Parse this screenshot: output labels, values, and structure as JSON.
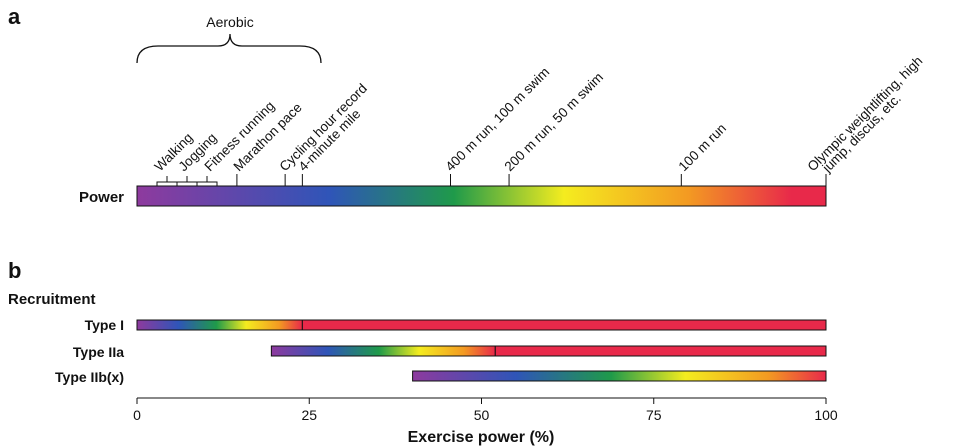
{
  "panel_a_label": "a",
  "panel_b_label": "b",
  "aerobic_label": "Aerobic",
  "power_label": "Power",
  "recruitment_label": "Recruitment",
  "activities": [
    {
      "name": "Walking",
      "power": 4
    },
    {
      "name": "Jogging",
      "power": 7
    },
    {
      "name": "Fitness running",
      "power": 10
    },
    {
      "name": "Marathon pace",
      "power": 14.5
    },
    {
      "name": "Cycling hour record",
      "power": 21.5
    },
    {
      "name": "4-minute mile",
      "power": 24
    },
    {
      "name": "400 m run, 100 m swim",
      "power": 45.5
    },
    {
      "name": "200 m run, 50 m swim",
      "power": 54
    },
    {
      "name": "100 m run",
      "power": 79
    },
    {
      "name": "Olympic weightlifting, high jump, discus, etc.",
      "power": 100
    }
  ],
  "activity_text": {
    "olympic_line1": "Olympic weightlifting, high",
    "olympic_line2": "jump, discus, etc."
  },
  "chart_data": {
    "type": "bar",
    "xlabel": "Exercise power (%)",
    "xlim": [
      0,
      100
    ],
    "ticks": [
      0,
      25,
      50,
      75,
      100
    ],
    "tick_labels": [
      "0",
      "25",
      "50",
      "75",
      "100"
    ],
    "power_gradient": {
      "start": 0,
      "end": 100
    },
    "series": [
      {
        "name": "Type I",
        "recruit_start": 0,
        "full_at": 24,
        "end": 100
      },
      {
        "name": "Type IIa",
        "recruit_start": 19.5,
        "full_at": 52,
        "end": 100
      },
      {
        "name": "Type IIb(x)",
        "recruit_start": 40,
        "full_at": 100,
        "end": 100
      }
    ]
  },
  "colors": {
    "purple": "#8e3a9e",
    "blue": "#2f55b8",
    "green": "#1f9a4a",
    "yellow": "#f4ec1f",
    "orange": "#f39a22",
    "red": "#e8294a"
  }
}
